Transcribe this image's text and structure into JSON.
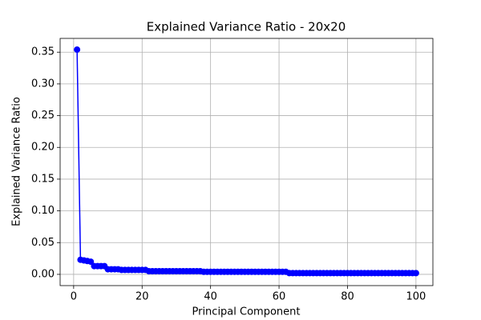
{
  "chart_data": {
    "type": "line",
    "title": "Explained Variance Ratio - 20x20",
    "xlabel": "Principal Component",
    "ylabel": "Explained Variance Ratio",
    "x": [
      1,
      2,
      3,
      4,
      5,
      6,
      7,
      8,
      9,
      10,
      11,
      12,
      13,
      14,
      15,
      16,
      17,
      18,
      19,
      20,
      21,
      22,
      23,
      24,
      25,
      26,
      27,
      28,
      29,
      30,
      31,
      32,
      33,
      34,
      35,
      36,
      37,
      38,
      39,
      40,
      41,
      42,
      43,
      44,
      45,
      46,
      47,
      48,
      49,
      50,
      51,
      52,
      53,
      54,
      55,
      56,
      57,
      58,
      59,
      60,
      61,
      62,
      63,
      64,
      65,
      66,
      67,
      68,
      69,
      70,
      71,
      72,
      73,
      74,
      75,
      76,
      77,
      78,
      79,
      80,
      81,
      82,
      83,
      84,
      85,
      86,
      87,
      88,
      89,
      90,
      91,
      92,
      93,
      94,
      95,
      96,
      97,
      98,
      99,
      100
    ],
    "values": [
      0.354,
      0.023,
      0.022,
      0.021,
      0.02,
      0.013,
      0.013,
      0.013,
      0.013,
      0.008,
      0.008,
      0.008,
      0.008,
      0.007,
      0.007,
      0.007,
      0.007,
      0.007,
      0.007,
      0.007,
      0.007,
      0.005,
      0.005,
      0.005,
      0.005,
      0.005,
      0.005,
      0.005,
      0.005,
      0.005,
      0.005,
      0.005,
      0.005,
      0.005,
      0.005,
      0.005,
      0.005,
      0.004,
      0.004,
      0.004,
      0.004,
      0.004,
      0.004,
      0.004,
      0.004,
      0.004,
      0.004,
      0.004,
      0.004,
      0.004,
      0.004,
      0.004,
      0.004,
      0.004,
      0.004,
      0.004,
      0.004,
      0.004,
      0.004,
      0.004,
      0.004,
      0.004,
      0.002,
      0.002,
      0.002,
      0.002,
      0.002,
      0.002,
      0.002,
      0.002,
      0.002,
      0.002,
      0.002,
      0.002,
      0.002,
      0.002,
      0.002,
      0.002,
      0.002,
      0.002,
      0.002,
      0.002,
      0.002,
      0.002,
      0.002,
      0.002,
      0.002,
      0.002,
      0.002,
      0.002,
      0.002,
      0.002,
      0.002,
      0.002,
      0.002,
      0.002,
      0.002,
      0.002,
      0.002,
      0.002
    ],
    "color": "#0000ff",
    "xlim": [
      -3.95,
      104.95
    ],
    "xticks": [
      0,
      20,
      40,
      60,
      80,
      100
    ],
    "ylim": [
      -0.0177,
      0.3717
    ],
    "yticks": [
      {
        "value": 0,
        "label": "0.00"
      },
      {
        "value": 0.05,
        "label": "0.05"
      },
      {
        "value": 0.1,
        "label": "0.10"
      },
      {
        "value": 0.15,
        "label": "0.15"
      },
      {
        "value": 0.2,
        "label": "0.20"
      },
      {
        "value": 0.25,
        "label": "0.25"
      },
      {
        "value": 0.3,
        "label": "0.30"
      },
      {
        "value": 0.35,
        "label": "0.35"
      }
    ],
    "grid": true
  }
}
